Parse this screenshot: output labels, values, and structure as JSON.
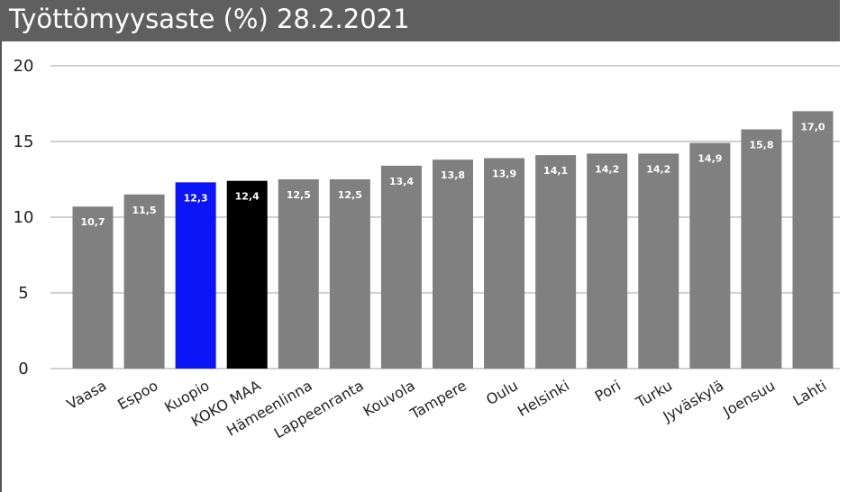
{
  "chart_data": {
    "type": "bar",
    "title": "Työttömyysaste (%) 28.2.2021",
    "categories": [
      "Vaasa",
      "Espoo",
      "Kuopio",
      "KOKO MAA",
      "Hämeenlinna",
      "Lappeenranta",
      "Kouvola",
      "Tampere",
      "Oulu",
      "Helsinki",
      "Pori",
      "Turku",
      "Jyväskylä",
      "Joensuu",
      "Lahti"
    ],
    "values": [
      10.7,
      11.5,
      12.3,
      12.4,
      12.5,
      12.5,
      13.4,
      13.8,
      13.9,
      14.1,
      14.2,
      14.2,
      14.9,
      15.8,
      17.0
    ],
    "data_labels": [
      "10,7",
      "11,5",
      "12,3",
      "12,4",
      "12,5",
      "12,5",
      "13,4",
      "13,8",
      "13,9",
      "14,1",
      "14,2",
      "14,2",
      "14,9",
      "15,8",
      "17,0"
    ],
    "bar_colors": [
      "#808080",
      "#808080",
      "#0a14f5",
      "#000000",
      "#808080",
      "#808080",
      "#808080",
      "#808080",
      "#808080",
      "#808080",
      "#808080",
      "#808080",
      "#808080",
      "#808080",
      "#808080"
    ],
    "y_ticks": [
      "0",
      "5",
      "10",
      "15",
      "20"
    ],
    "ylim": [
      0,
      20
    ],
    "grid": true,
    "xlabel": "",
    "ylabel": ""
  },
  "colors": {
    "title_bar": "#5f5f5f",
    "default_bar": "#808080",
    "highlight_city": "#0a14f5",
    "national": "#000000",
    "grid": "#d0d0d0"
  }
}
